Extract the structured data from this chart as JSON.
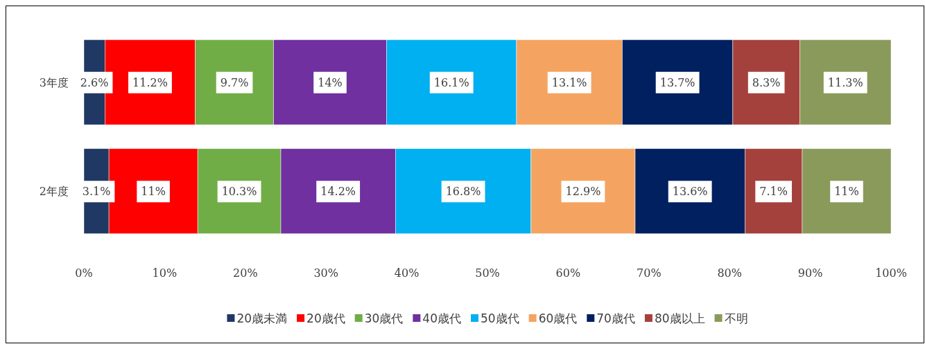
{
  "chart_data": {
    "type": "bar",
    "orientation": "horizontal",
    "stacked": true,
    "categories": [
      "3年度",
      "2年度"
    ],
    "xlim": [
      0,
      100
    ],
    "xticks": [
      {
        "value": 0,
        "label": "0%"
      },
      {
        "value": 10,
        "label": "10%"
      },
      {
        "value": 20,
        "label": "20%"
      },
      {
        "value": 30,
        "label": "30%"
      },
      {
        "value": 40,
        "label": "40%"
      },
      {
        "value": 50,
        "label": "50%"
      },
      {
        "value": 60,
        "label": "60%"
      },
      {
        "value": 70,
        "label": "70%"
      },
      {
        "value": 80,
        "label": "80%"
      },
      {
        "value": 90,
        "label": "90%"
      },
      {
        "value": 100,
        "label": "100%"
      }
    ],
    "grid": false,
    "legend": "bottom",
    "series": [
      {
        "name": "20歳未満",
        "color": "#203864",
        "values": [
          2.6,
          3.1
        ],
        "value_labels": [
          "2.6%",
          "3.1%"
        ]
      },
      {
        "name": "20歳代",
        "color": "#ff0000",
        "values": [
          11.2,
          11
        ],
        "value_labels": [
          "11.2%",
          "11%"
        ]
      },
      {
        "name": "30歳代",
        "color": "#70ad47",
        "values": [
          9.7,
          10.3
        ],
        "value_labels": [
          "9.7%",
          "10.3%"
        ]
      },
      {
        "name": "40歳代",
        "color": "#7030a0",
        "values": [
          14,
          14.2
        ],
        "value_labels": [
          "14%",
          "14.2%"
        ]
      },
      {
        "name": "50歳代",
        "color": "#00b0f0",
        "values": [
          16.1,
          16.8
        ],
        "value_labels": [
          "16.1%",
          "16.8%"
        ]
      },
      {
        "name": "60歳代",
        "color": "#f4a460",
        "values": [
          13.1,
          12.9
        ],
        "value_labels": [
          "13.1%",
          "12.9%"
        ]
      },
      {
        "name": "70歳代",
        "color": "#002060",
        "values": [
          13.7,
          13.6
        ],
        "value_labels": [
          "13.7%",
          "13.6%"
        ]
      },
      {
        "name": "80歳以上",
        "color": "#a5413c",
        "values": [
          8.3,
          7.1
        ],
        "value_labels": [
          "8.3%",
          "7.1%"
        ]
      },
      {
        "name": "不明",
        "color": "#8a9a5b",
        "values": [
          11.3,
          11
        ],
        "value_labels": [
          "11.3%",
          "11%"
        ]
      }
    ]
  }
}
